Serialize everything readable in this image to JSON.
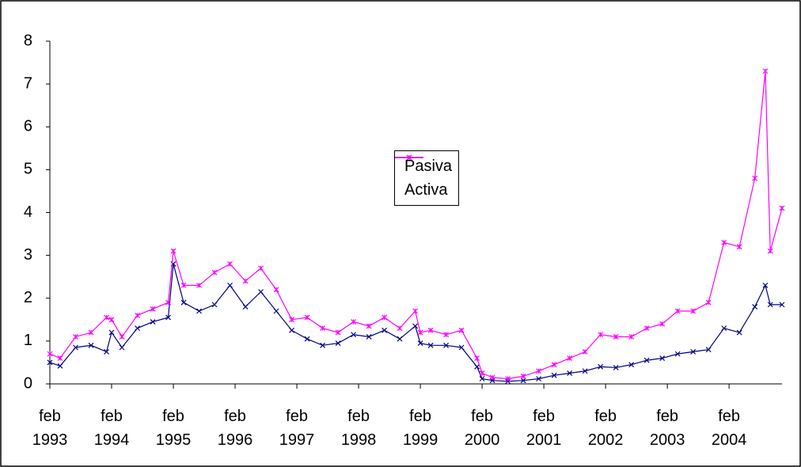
{
  "chart_data": {
    "type": "line",
    "x": [
      1993.083,
      1993.25,
      1993.5,
      1993.75,
      1994.0,
      1994.083,
      1994.25,
      1994.5,
      1994.75,
      1995.0,
      1995.083,
      1995.25,
      1995.5,
      1995.75,
      1996.0,
      1996.25,
      1996.5,
      1996.75,
      1997.0,
      1997.25,
      1997.5,
      1997.75,
      1998.0,
      1998.25,
      1998.5,
      1998.75,
      1999.0,
      1999.083,
      1999.25,
      1999.5,
      1999.75,
      2000.0,
      2000.083,
      2000.25,
      2000.5,
      2000.75,
      2001.0,
      2001.25,
      2001.5,
      2001.75,
      2002.0,
      2002.25,
      2002.5,
      2002.75,
      2003.0,
      2003.25,
      2003.5,
      2003.75,
      2004.0,
      2004.25,
      2004.5,
      2004.67,
      2004.75,
      2004.94
    ],
    "series": [
      {
        "name": "Pasiva",
        "color": "#000080",
        "values": [
          0.5,
          0.42,
          0.85,
          0.9,
          0.75,
          1.2,
          0.85,
          1.3,
          1.45,
          1.55,
          2.8,
          1.9,
          1.7,
          1.85,
          2.3,
          1.8,
          2.15,
          1.7,
          1.25,
          1.05,
          0.9,
          0.95,
          1.15,
          1.1,
          1.25,
          1.05,
          1.35,
          0.95,
          0.9,
          0.9,
          0.85,
          0.4,
          0.12,
          0.08,
          0.06,
          0.08,
          0.12,
          0.2,
          0.25,
          0.3,
          0.4,
          0.38,
          0.45,
          0.55,
          0.6,
          0.7,
          0.75,
          0.8,
          1.3,
          1.2,
          1.8,
          2.3,
          1.85,
          1.85
        ]
      },
      {
        "name": "Activa",
        "color": "#ff00ff",
        "values": [
          0.7,
          0.6,
          1.1,
          1.2,
          1.55,
          1.5,
          1.1,
          1.6,
          1.75,
          1.9,
          3.1,
          2.3,
          2.3,
          2.6,
          2.8,
          2.4,
          2.7,
          2.2,
          1.5,
          1.55,
          1.3,
          1.2,
          1.45,
          1.35,
          1.55,
          1.3,
          1.7,
          1.2,
          1.25,
          1.15,
          1.25,
          0.6,
          0.25,
          0.15,
          0.12,
          0.18,
          0.3,
          0.45,
          0.6,
          0.75,
          1.15,
          1.1,
          1.1,
          1.3,
          1.4,
          1.7,
          1.7,
          1.9,
          3.3,
          3.2,
          4.8,
          7.3,
          3.1,
          4.1
        ]
      }
    ],
    "xlim": [
      1993.083,
      2004.94
    ],
    "xticks": [
      {
        "value": 1993.083,
        "label": "feb 1993"
      },
      {
        "value": 1994.083,
        "label": "feb 1994"
      },
      {
        "value": 1995.083,
        "label": "feb 1995"
      },
      {
        "value": 1996.083,
        "label": "feb 1996"
      },
      {
        "value": 1997.083,
        "label": "feb 1997"
      },
      {
        "value": 1998.083,
        "label": "feb 1998"
      },
      {
        "value": 1999.083,
        "label": "feb 1999"
      },
      {
        "value": 2000.083,
        "label": "feb 2000"
      },
      {
        "value": 2001.083,
        "label": "feb 2001"
      },
      {
        "value": 2002.083,
        "label": "feb 2002"
      },
      {
        "value": 2003.083,
        "label": "feb 2003"
      },
      {
        "value": 2004.083,
        "label": "feb 2004"
      }
    ],
    "ylim": [
      0,
      8
    ],
    "yticks": [
      0,
      1,
      2,
      3,
      4,
      5,
      6,
      7,
      8
    ],
    "grid": false,
    "legend": "center"
  }
}
